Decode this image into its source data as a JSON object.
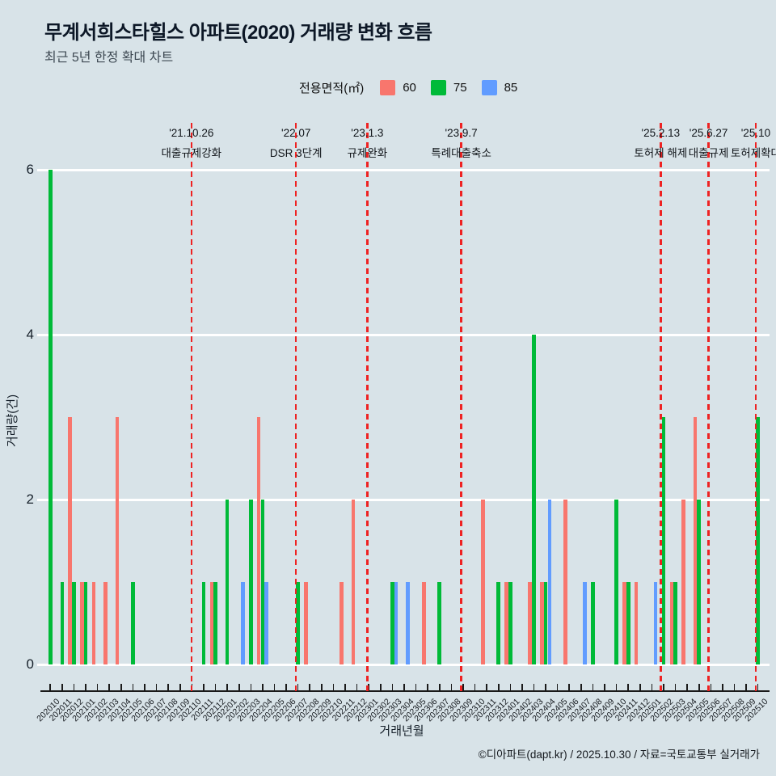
{
  "title": "무계서희스타힐스 아파트(2020) 거래량 변화 흐름",
  "subtitle": "최근 5년 한정 확대 차트",
  "legend": {
    "title": "전용면적(㎡)",
    "items": [
      {
        "label": "60",
        "color": "#F8766D"
      },
      {
        "label": "75",
        "color": "#00BA38"
      },
      {
        "label": "85",
        "color": "#619CFF"
      }
    ]
  },
  "footer": "©디아파트(dapt.kr) / 2025.10.30 / 자료=국토교통부 실거래가",
  "chart_data": {
    "type": "bar",
    "title": "무계서희스타힐스 아파트(2020) 거래량 변화 흐름",
    "subtitle": "최근 5년 한정 확대 차트",
    "xlabel": "거래년월",
    "ylabel": "거래량(건)",
    "ylim": [
      0,
      6
    ],
    "yticks": [
      0,
      2,
      4,
      6
    ],
    "grid": true,
    "legend_position": "top",
    "legend_title": "전용면적(㎡)",
    "categories": [
      "202010",
      "202011",
      "202012",
      "202101",
      "202102",
      "202103",
      "202104",
      "202105",
      "202106",
      "202107",
      "202108",
      "202109",
      "202110",
      "202111",
      "202112",
      "202201",
      "202202",
      "202203",
      "202204",
      "202205",
      "202206",
      "202207",
      "202208",
      "202209",
      "202210",
      "202211",
      "202212",
      "202301",
      "202302",
      "202303",
      "202304",
      "202305",
      "202306",
      "202307",
      "202308",
      "202309",
      "202310",
      "202311",
      "202312",
      "202401",
      "202402",
      "202403",
      "202404",
      "202405",
      "202406",
      "202407",
      "202408",
      "202409",
      "202410",
      "202411",
      "202412",
      "202501",
      "202502",
      "202503",
      "202504",
      "202505",
      "202506",
      "202507",
      "202508",
      "202509",
      "202510"
    ],
    "series": [
      {
        "name": "60",
        "color": "#F8766D",
        "values": [
          0,
          0,
          3,
          1,
          1,
          1,
          3,
          0,
          0,
          0,
          0,
          0,
          0,
          0,
          1,
          0,
          0,
          0,
          3,
          0,
          0,
          0,
          1,
          0,
          0,
          1,
          2,
          0,
          0,
          0,
          0,
          0,
          1,
          0,
          0,
          0,
          0,
          2,
          0,
          1,
          0,
          1,
          1,
          0,
          2,
          0,
          0,
          0,
          0,
          1,
          1,
          0,
          0,
          1,
          2,
          3,
          0,
          0,
          0,
          0,
          0
        ]
      },
      {
        "name": "75",
        "color": "#00BA38",
        "values": [
          6,
          1,
          1,
          1,
          0,
          0,
          0,
          1,
          0,
          0,
          0,
          0,
          0,
          1,
          1,
          2,
          0,
          2,
          2,
          0,
          0,
          1,
          0,
          0,
          0,
          0,
          0,
          0,
          0,
          1,
          0,
          0,
          0,
          1,
          0,
          0,
          0,
          0,
          1,
          1,
          0,
          4,
          1,
          0,
          0,
          0,
          1,
          0,
          2,
          1,
          0,
          0,
          3,
          1,
          0,
          2,
          0,
          0,
          0,
          0,
          3
        ]
      },
      {
        "name": "85",
        "color": "#619CFF",
        "values": [
          0,
          0,
          0,
          0,
          0,
          0,
          0,
          0,
          0,
          0,
          0,
          0,
          0,
          0,
          0,
          0,
          1,
          0,
          1,
          0,
          0,
          0,
          0,
          0,
          0,
          0,
          0,
          0,
          0,
          1,
          1,
          0,
          0,
          0,
          0,
          0,
          0,
          0,
          0,
          0,
          0,
          0,
          2,
          0,
          0,
          1,
          0,
          0,
          0,
          0,
          0,
          1,
          0,
          0,
          0,
          0,
          0,
          0,
          0,
          0,
          0
        ]
      }
    ],
    "events": [
      {
        "date": "'21.10.26",
        "label": "대출규제강화",
        "pos": 11.96
      },
      {
        "date": "'22.07",
        "label": "DSR 3단계",
        "pos": 20.83
      },
      {
        "date": "'23.1.3",
        "label": "규제완화",
        "pos": 26.87
      },
      {
        "date": "'23.9.7",
        "label": "특례대출축소",
        "pos": 34.84
      },
      {
        "date": "'25.2.13",
        "label": "토허제 해제",
        "pos": 51.75
      },
      {
        "date": "'25.6.27",
        "label": "대출규제",
        "pos": 55.81
      },
      {
        "date": "'25.10",
        "label": "토허제확대",
        "pos": 59.81
      }
    ],
    "event_line_color": "#ee2222"
  }
}
